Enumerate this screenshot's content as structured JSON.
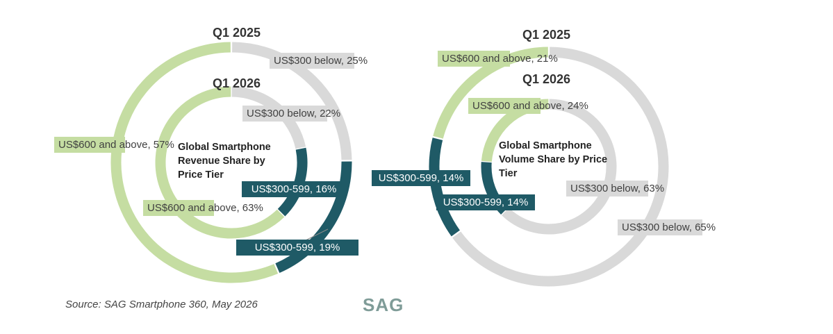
{
  "colors": {
    "below_300": "#d9d9d9",
    "mid_300_599": "#1f5a66",
    "above_600": "#c5dda2"
  },
  "chart_data": [
    {
      "type": "pie",
      "title": "Global Smartphone Revenue Share by Price Tier",
      "rings": [
        {
          "name": "Q1 2025",
          "slices": [
            {
              "label": "US$300 below,\n25%",
              "value": 25,
              "color": "#d9d9d9"
            },
            {
              "label": "US$300-599, 19%",
              "value": 19,
              "color": "#1f5a66"
            },
            {
              "label": "US$600 and\nabove, 57%",
              "value": 57,
              "color": "#c5dda2"
            }
          ]
        },
        {
          "name": "Q1 2026",
          "slices": [
            {
              "label": "US$300 below,\n22%",
              "value": 22,
              "color": "#d9d9d9"
            },
            {
              "label": "US$300-599, 16%",
              "value": 16,
              "color": "#1f5a66"
            },
            {
              "label": "US$600 and\nabove, 63%",
              "value": 63,
              "color": "#c5dda2"
            }
          ]
        }
      ]
    },
    {
      "type": "pie",
      "title": "Global Smartphone Volume Share by Price Tier",
      "rings": [
        {
          "name": "Q1 2025",
          "slices": [
            {
              "label": "US$300 below,\n65%",
              "value": 65,
              "color": "#d9d9d9"
            },
            {
              "label": "US$300-599, 14%",
              "value": 14,
              "color": "#1f5a66"
            },
            {
              "label": "US$600 and\nabove, 21%",
              "value": 21,
              "color": "#c5dda2"
            }
          ]
        },
        {
          "name": "Q1 2026",
          "slices": [
            {
              "label": "US$300 below,\n63%",
              "value": 63,
              "color": "#d9d9d9"
            },
            {
              "label": "US$300-599, 14%",
              "value": 14,
              "color": "#1f5a66"
            },
            {
              "label": "US$600 and\nabove, 24%",
              "value": 24,
              "color": "#c5dda2"
            }
          ]
        }
      ]
    }
  ],
  "source": "Source: SAG Smartphone 360, May 2026",
  "logo_text": "SAG"
}
